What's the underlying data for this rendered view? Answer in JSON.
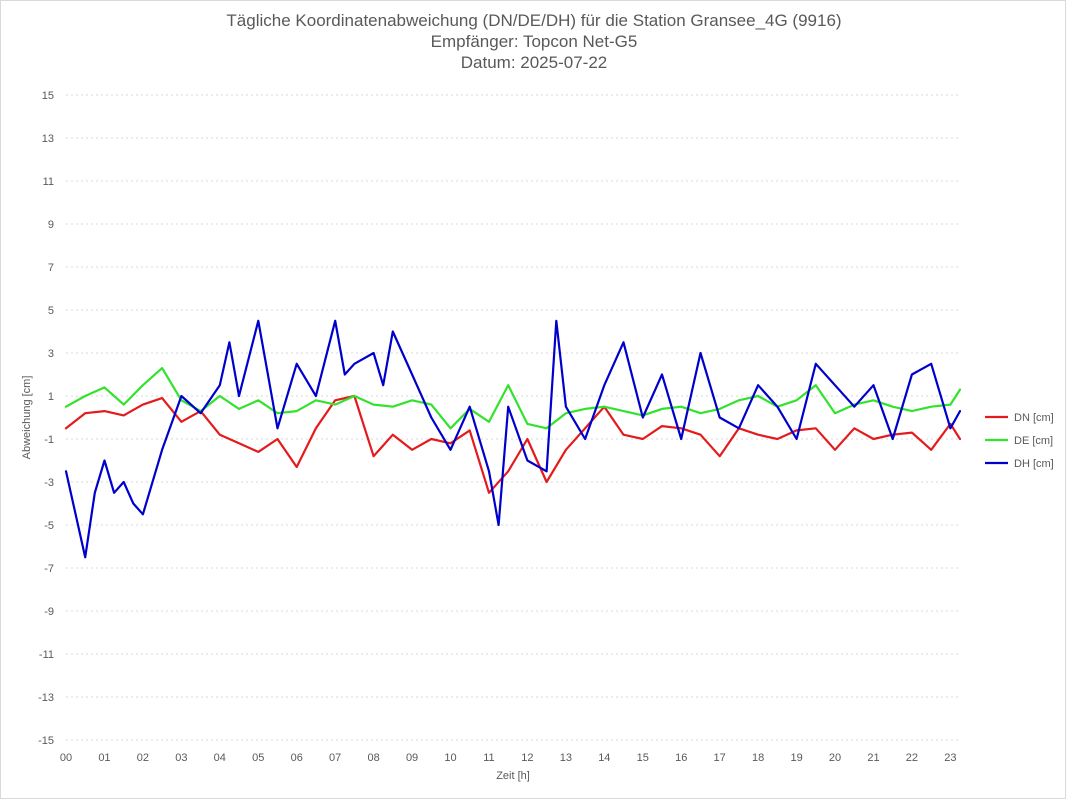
{
  "chart_data": {
    "type": "line",
    "title": "Tägliche Koordinatenabweichung (DN/DE/DH) für die Station Gransee_4G (9916)",
    "subtitle_lines": [
      "Empfänger: Topcon Net-G5",
      "Datum: 2025-07-22"
    ],
    "xlabel": "Zeit [h]",
    "ylabel": "Abweichung [cm]",
    "xlim": [
      0,
      23.25
    ],
    "ylim": [
      -15,
      15
    ],
    "x_ticks": [
      "00",
      "01",
      "02",
      "03",
      "04",
      "05",
      "06",
      "07",
      "08",
      "09",
      "10",
      "11",
      "12",
      "13",
      "14",
      "15",
      "16",
      "17",
      "18",
      "19",
      "20",
      "21",
      "22",
      "23"
    ],
    "y_ticks": [
      15,
      13,
      11,
      9,
      7,
      5,
      3,
      1,
      -1,
      -3,
      -5,
      -7,
      -9,
      -11,
      -13,
      -15
    ],
    "grid": true,
    "legend_position": "right",
    "series": [
      {
        "name": "DN [cm]",
        "color": "#e41a1c",
        "x": [
          0,
          0.5,
          1,
          1.5,
          2,
          2.5,
          3,
          3.5,
          4,
          4.5,
          5,
          5.5,
          6,
          6.5,
          7,
          7.5,
          8,
          8.5,
          9,
          9.5,
          10,
          10.5,
          11,
          11.5,
          12,
          12.5,
          13,
          13.5,
          14,
          14.5,
          15,
          15.5,
          16,
          16.5,
          17,
          17.5,
          18,
          18.5,
          19,
          19.5,
          20,
          20.5,
          21,
          21.5,
          22,
          22.5,
          23,
          23.25
        ],
        "values": [
          -0.5,
          0.2,
          0.3,
          0.1,
          0.6,
          0.9,
          -0.2,
          0.3,
          -0.8,
          -1.2,
          -1.6,
          -1.0,
          -2.3,
          -0.5,
          0.8,
          1.0,
          -1.8,
          -0.8,
          -1.5,
          -1.0,
          -1.2,
          -0.6,
          -3.5,
          -2.5,
          -1.0,
          -3.0,
          -1.5,
          -0.5,
          0.5,
          -0.8,
          -1.0,
          -0.4,
          -0.5,
          -0.8,
          -1.8,
          -0.5,
          -0.8,
          -1.0,
          -0.6,
          -0.5,
          -1.5,
          -0.5,
          -1.0,
          -0.8,
          -0.7,
          -1.5,
          -0.3,
          -1.0
        ]
      },
      {
        "name": "DE [cm]",
        "color": "#33e22d",
        "x": [
          0,
          0.5,
          1,
          1.5,
          2,
          2.5,
          3,
          3.5,
          4,
          4.5,
          5,
          5.5,
          6,
          6.5,
          7,
          7.5,
          8,
          8.5,
          9,
          9.5,
          10,
          10.5,
          11,
          11.5,
          12,
          12.5,
          13,
          13.5,
          14,
          14.5,
          15,
          15.5,
          16,
          16.5,
          17,
          17.5,
          18,
          18.5,
          19,
          19.5,
          20,
          20.5,
          21,
          21.5,
          22,
          22.5,
          23,
          23.25
        ],
        "values": [
          0.5,
          1.0,
          1.4,
          0.6,
          1.5,
          2.3,
          0.8,
          0.3,
          1.0,
          0.4,
          0.8,
          0.2,
          0.3,
          0.8,
          0.6,
          1.0,
          0.6,
          0.5,
          0.8,
          0.6,
          -0.5,
          0.4,
          -0.2,
          1.5,
          -0.3,
          -0.5,
          0.2,
          0.4,
          0.5,
          0.3,
          0.1,
          0.4,
          0.5,
          0.2,
          0.4,
          0.8,
          1.0,
          0.5,
          0.8,
          1.5,
          0.2,
          0.6,
          0.8,
          0.5,
          0.3,
          0.5,
          0.6,
          1.3
        ]
      },
      {
        "name": "DH [cm]",
        "color": "#0000cc",
        "x": [
          0,
          0.25,
          0.5,
          0.75,
          1,
          1.25,
          1.5,
          1.75,
          2,
          2.5,
          3,
          3.5,
          4,
          4.25,
          4.5,
          5,
          5.25,
          5.5,
          6,
          6.5,
          7,
          7.25,
          7.5,
          8,
          8.25,
          8.5,
          9,
          9.5,
          10,
          10.5,
          11,
          11.25,
          11.5,
          12,
          12.5,
          12.75,
          13,
          13.5,
          14,
          14.5,
          15,
          15.5,
          16,
          16.5,
          17,
          17.5,
          18,
          18.5,
          19,
          19.5,
          20,
          20.5,
          21,
          21.5,
          22,
          22.5,
          23,
          23.25
        ],
        "values": [
          -2.5,
          -4.5,
          -6.5,
          -3.5,
          -2.0,
          -3.5,
          -3.0,
          -4.0,
          -4.5,
          -1.5,
          1.0,
          0.2,
          1.5,
          3.5,
          1.0,
          4.5,
          2.0,
          -0.5,
          2.5,
          1.0,
          4.5,
          2.0,
          2.5,
          3.0,
          1.5,
          4.0,
          2.0,
          0.0,
          -1.5,
          0.5,
          -2.5,
          -5.0,
          0.5,
          -2.0,
          -2.5,
          4.5,
          0.5,
          -1.0,
          1.5,
          3.5,
          0.0,
          2.0,
          -1.0,
          3.0,
          0.0,
          -0.5,
          1.5,
          0.5,
          -1.0,
          2.5,
          1.5,
          0.5,
          1.5,
          -1.0,
          2.0,
          2.5,
          -0.5,
          0.3
        ]
      }
    ]
  }
}
